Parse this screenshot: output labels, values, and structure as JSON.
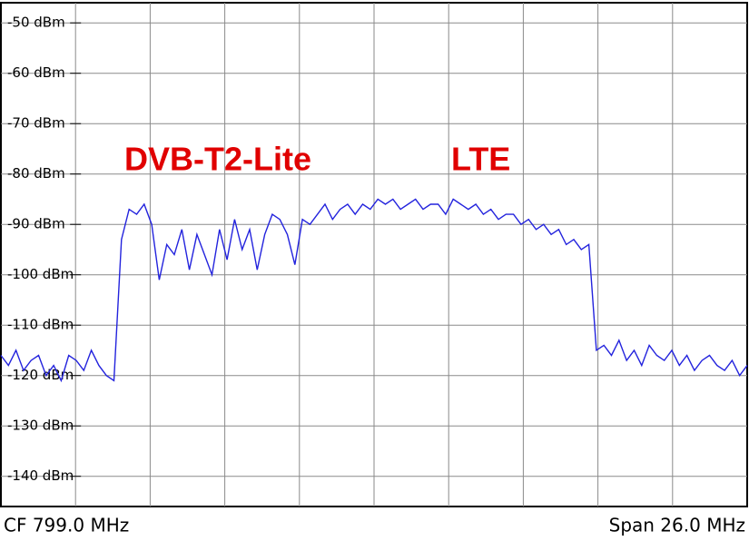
{
  "chart_data": {
    "type": "line",
    "annotations": [
      "DVB-T2-Lite",
      "LTE"
    ],
    "footer_left": "CF 799.0 MHz",
    "footer_right": "Span 26.0 MHz",
    "ylim": [
      -146,
      -46
    ],
    "yticks": [
      {
        "value": -50,
        "label": "-50 dBm"
      },
      {
        "value": -60,
        "label": "-60 dBm"
      },
      {
        "value": -70,
        "label": "-70 dBm"
      },
      {
        "value": -80,
        "label": "-80 dBm"
      },
      {
        "value": -90,
        "label": "-90 dBm"
      },
      {
        "value": -100,
        "label": "-100 dBm"
      },
      {
        "value": -110,
        "label": "-110 dBm"
      },
      {
        "value": -120,
        "label": "-120 dBm"
      },
      {
        "value": -130,
        "label": "-130 dBm"
      },
      {
        "value": -140,
        "label": "-140 dBm"
      }
    ],
    "grid": true,
    "color": "#2323dd",
    "values": [
      -116,
      -118,
      -115,
      -119,
      -117,
      -116,
      -120,
      -118,
      -121,
      -116,
      -117,
      -119,
      -115,
      -118,
      -120,
      -121,
      -93,
      -87,
      -88,
      -86,
      -90,
      -101,
      -94,
      -96,
      -91,
      -99,
      -92,
      -96,
      -100,
      -91,
      -97,
      -89,
      -95,
      -91,
      -99,
      -92,
      -88,
      -89,
      -92,
      -98,
      -89,
      -90,
      -88,
      -86,
      -89,
      -87,
      -86,
      -88,
      -86,
      -87,
      -85,
      -86,
      -85,
      -87,
      -86,
      -85,
      -87,
      -86,
      -86,
      -88,
      -85,
      -86,
      -87,
      -86,
      -88,
      -87,
      -89,
      -88,
      -88,
      -90,
      -89,
      -91,
      -90,
      -92,
      -91,
      -94,
      -93,
      -95,
      -94,
      -115,
      -114,
      -116,
      -113,
      -117,
      -115,
      -118,
      -114,
      -116,
      -117,
      -115,
      -118,
      -116,
      -119,
      -117,
      -116,
      -118,
      -119,
      -117,
      -120,
      -118
    ]
  }
}
